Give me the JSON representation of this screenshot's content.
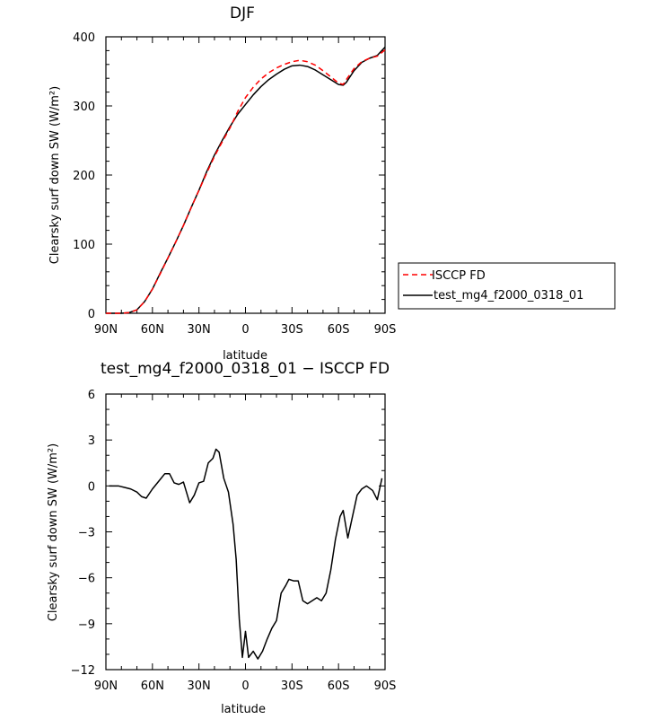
{
  "chart_data": [
    {
      "type": "line",
      "title": "DJF",
      "xlabel": "latitude",
      "ylabel": "Clearsky surf down SW (W/m²)",
      "xlim": [
        -90,
        90
      ],
      "ylim": [
        0,
        400
      ],
      "x_ticks": [
        "90N",
        "60N",
        "30N",
        "0",
        "30S",
        "60S",
        "90S"
      ],
      "y_ticks": [
        "0",
        "100",
        "200",
        "300",
        "400"
      ],
      "grid": false,
      "legend_position": "outside-right",
      "series": [
        {
          "name": "ISCCP FD",
          "color": "#ff0000",
          "dash": "dashed",
          "x": [
            -90,
            -80,
            -75,
            -70,
            -65,
            -60,
            -55,
            -50,
            -45,
            -40,
            -35,
            -30,
            -25,
            -20,
            -15,
            -10,
            -5,
            0,
            5,
            10,
            15,
            20,
            25,
            30,
            35,
            40,
            45,
            50,
            55,
            60,
            63,
            65,
            70,
            75,
            80,
            85,
            90
          ],
          "y": [
            0,
            0,
            1,
            5,
            17,
            35,
            57,
            80,
            103,
            127,
            153,
            178,
            203,
            227,
            248,
            268,
            292,
            312,
            327,
            339,
            348,
            355,
            360,
            364,
            366,
            364,
            359,
            351,
            342,
            333,
            331,
            338,
            354,
            364,
            369,
            372,
            381
          ]
        },
        {
          "name": "test_mg4_f2000_0318_01",
          "color": "#000000",
          "dash": "solid",
          "x": [
            -90,
            -80,
            -75,
            -70,
            -65,
            -60,
            -55,
            -50,
            -45,
            -40,
            -35,
            -30,
            -25,
            -20,
            -15,
            -10,
            -5,
            0,
            5,
            10,
            15,
            20,
            25,
            30,
            35,
            40,
            45,
            50,
            55,
            60,
            63,
            65,
            70,
            75,
            80,
            85,
            90
          ],
          "y": [
            0,
            0,
            1,
            5,
            17,
            35,
            58,
            80,
            103,
            127,
            153,
            178,
            205,
            229,
            250,
            270,
            288,
            302,
            316,
            328,
            338,
            346,
            353,
            358,
            359,
            357,
            352,
            345,
            338,
            331,
            330,
            334,
            351,
            363,
            369,
            373,
            385
          ]
        }
      ]
    },
    {
      "type": "line",
      "title": "test_mg4_f2000_0318_01 − ISCCP FD",
      "xlabel": "latitude",
      "ylabel": "Clearsky surf down SW (W/m²)",
      "xlim": [
        -90,
        90
      ],
      "ylim": [
        -12,
        6
      ],
      "x_ticks": [
        "90N",
        "60N",
        "30N",
        "0",
        "30S",
        "60S",
        "90S"
      ],
      "y_ticks": [
        "−12",
        "−9",
        "−6",
        "−3",
        "0",
        "3",
        "6"
      ],
      "grid": false,
      "series": [
        {
          "color": "#000000",
          "dash": "solid",
          "x": [
            -88,
            -82,
            -78,
            -74,
            -70,
            -67,
            -64,
            -60,
            -56,
            -52,
            -49,
            -46,
            -43,
            -40,
            -36,
            -33,
            -30,
            -27,
            -24,
            -21,
            -19,
            -17,
            -14,
            -11,
            -8,
            -6,
            -4,
            -2,
            0,
            2,
            5,
            8,
            11,
            14,
            17,
            20,
            23,
            26,
            28,
            31,
            34,
            37,
            40,
            43,
            46,
            49,
            52,
            55,
            58,
            61,
            63,
            66,
            69,
            72,
            75,
            78,
            82,
            85,
            88
          ],
          "y": [
            0,
            0,
            -0.1,
            -0.2,
            -0.4,
            -0.7,
            -0.8,
            -0.2,
            0.3,
            0.8,
            0.8,
            0.2,
            0.1,
            0.25,
            -1.1,
            -0.6,
            0.2,
            0.3,
            1.5,
            1.8,
            2.4,
            2.2,
            0.5,
            -0.4,
            -2.5,
            -4.8,
            -8.7,
            -11.2,
            -9.5,
            -11.2,
            -10.8,
            -11.3,
            -10.8,
            -10,
            -9.3,
            -8.8,
            -7,
            -6.5,
            -6.1,
            -6.2,
            -6.2,
            -7.5,
            -7.7,
            -7.5,
            -7.3,
            -7.5,
            -7,
            -5.5,
            -3.5,
            -2,
            -1.6,
            -3.4,
            -2,
            -0.6,
            -0.2,
            0,
            -0.3,
            -0.9,
            0.5
          ]
        }
      ]
    }
  ]
}
